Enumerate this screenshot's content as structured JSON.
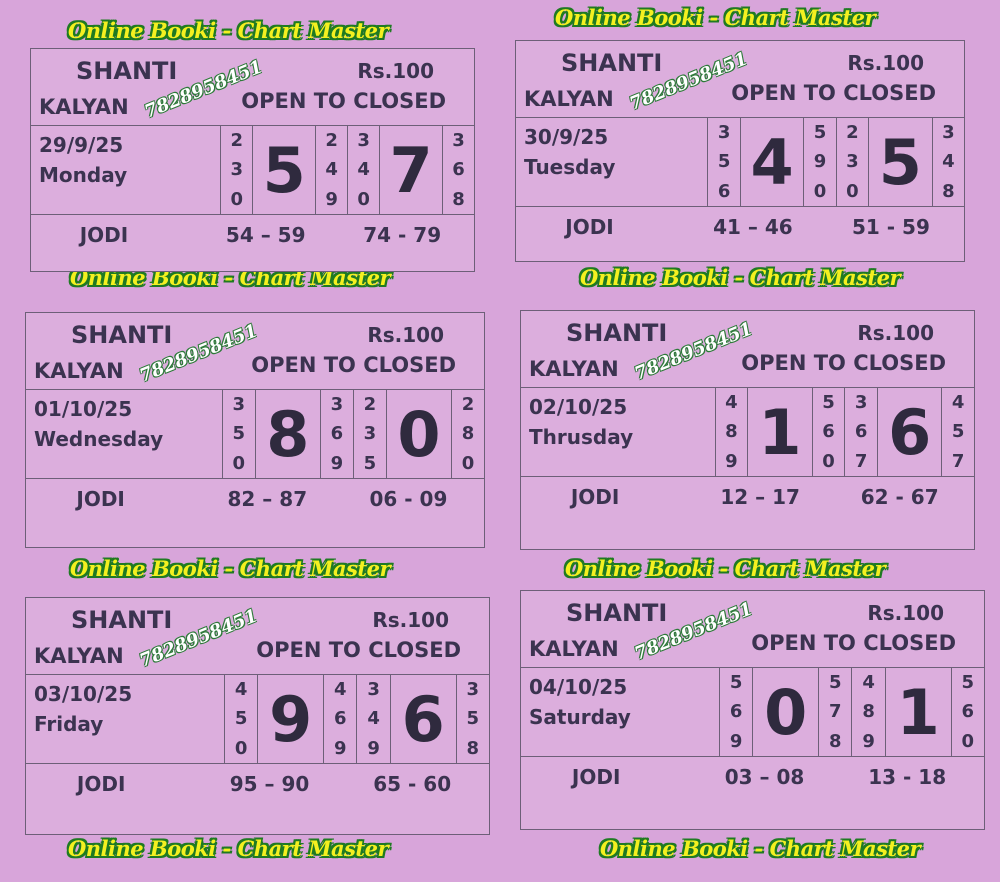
{
  "banner_text": "Online Booki - Chart Master",
  "colors": {
    "background": "#d8a5da",
    "banner_fill": "#f4f020",
    "banner_outline": "#1f7a22",
    "ink": "#3b3350"
  },
  "cards": [
    {
      "title": "SHANTI",
      "price": "Rs.100",
      "market": "KALYAN",
      "phone": "7828958451",
      "subtitle": "OPEN TO CLOSED",
      "date": "29/9/25",
      "day": "Monday",
      "cols": [
        [
          "2",
          "3",
          "0"
        ],
        "5",
        [
          "2",
          "4",
          "9"
        ],
        [
          "3",
          "4",
          "0"
        ],
        "7",
        [
          "3",
          "6",
          "8"
        ]
      ],
      "jodi_label": "JODI",
      "jodi_open": "54 – 59",
      "jodi_close": "74 - 79"
    },
    {
      "title": "SHANTI",
      "price": "Rs.100",
      "market": "KALYAN",
      "phone": "7828958451",
      "subtitle": "OPEN TO CLOSED",
      "date": "30/9/25",
      "day": "Tuesday",
      "cols": [
        [
          "3",
          "5",
          "6"
        ],
        "4",
        [
          "5",
          "9",
          "0"
        ],
        [
          "2",
          "3",
          "0"
        ],
        "5",
        [
          "3",
          "4",
          "8"
        ]
      ],
      "jodi_label": "JODI",
      "jodi_open": "41 – 46",
      "jodi_close": "51 - 59"
    },
    {
      "title": "SHANTI",
      "price": "Rs.100",
      "market": "KALYAN",
      "phone": "7828958451",
      "subtitle": "OPEN TO CLOSED",
      "date": "01/10/25",
      "day": "Wednesday",
      "cols": [
        [
          "3",
          "5",
          "0"
        ],
        "8",
        [
          "3",
          "6",
          "9"
        ],
        [
          "2",
          "3",
          "5"
        ],
        "0",
        [
          "2",
          "8",
          "0"
        ]
      ],
      "jodi_label": "JODI",
      "jodi_open": "82 – 87",
      "jodi_close": "06 - 09"
    },
    {
      "title": "SHANTI",
      "price": "Rs.100",
      "market": "KALYAN",
      "phone": "7828958451",
      "subtitle": "OPEN TO CLOSED",
      "date": "02/10/25",
      "day": "Thrusday",
      "cols": [
        [
          "4",
          "8",
          "9"
        ],
        "1",
        [
          "5",
          "6",
          "0"
        ],
        [
          "3",
          "6",
          "7"
        ],
        "6",
        [
          "4",
          "5",
          "7"
        ]
      ],
      "jodi_label": "JODI",
      "jodi_open": "12 – 17",
      "jodi_close": "62 - 67"
    },
    {
      "title": "SHANTI",
      "price": "Rs.100",
      "market": "KALYAN",
      "phone": "7828958451",
      "subtitle": "OPEN TO CLOSED",
      "date": "03/10/25",
      "day": "Friday",
      "cols": [
        [
          "4",
          "5",
          "0"
        ],
        "9",
        [
          "4",
          "6",
          "9"
        ],
        [
          "3",
          "4",
          "9"
        ],
        "6",
        [
          "3",
          "5",
          "8"
        ]
      ],
      "jodi_label": "JODI",
      "jodi_open": "95 – 90",
      "jodi_close": "65 - 60"
    },
    {
      "title": "SHANTI",
      "price": "Rs.100",
      "market": "KALYAN",
      "phone": "7828958451",
      "subtitle": "OPEN TO CLOSED",
      "date": "04/10/25",
      "day": "Saturday",
      "cols": [
        [
          "5",
          "6",
          "9"
        ],
        "0",
        [
          "5",
          "7",
          "8"
        ],
        [
          "4",
          "8",
          "9"
        ],
        "1",
        [
          "5",
          "6",
          "0"
        ]
      ],
      "jodi_label": "JODI",
      "jodi_open": "03 – 08",
      "jodi_close": "13 - 18"
    }
  ]
}
